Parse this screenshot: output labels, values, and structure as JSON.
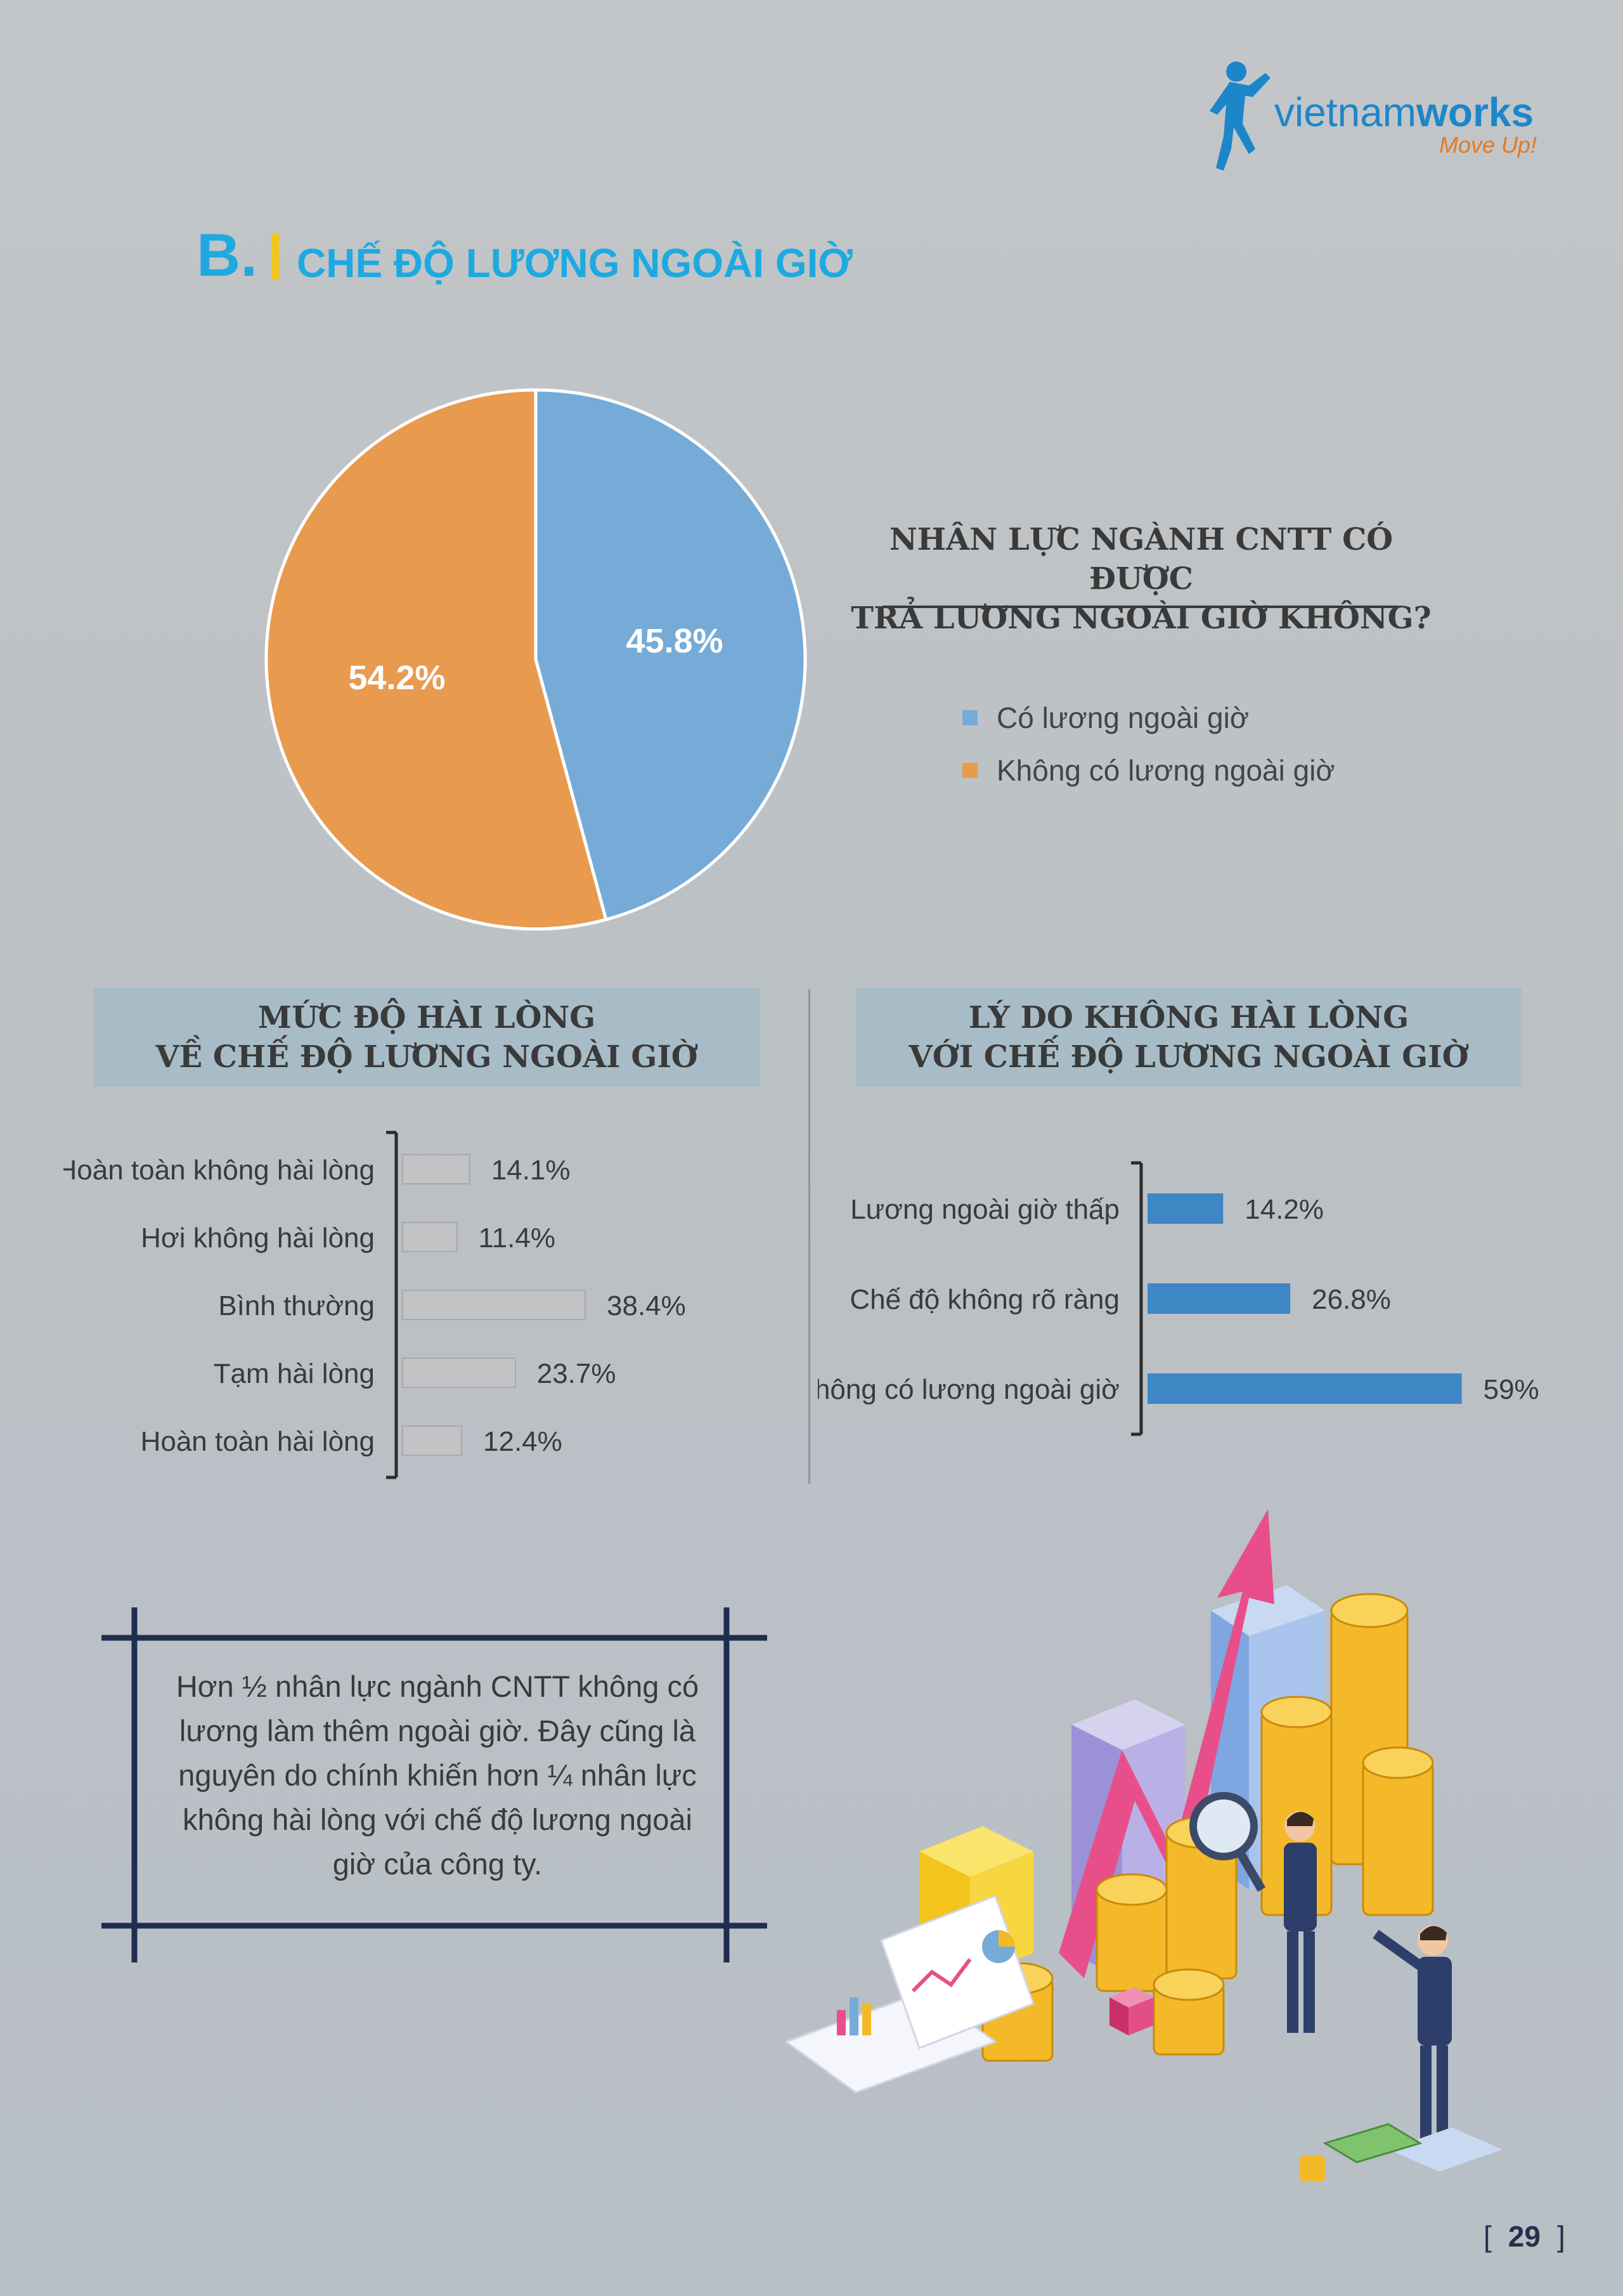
{
  "brand": {
    "name_light": "vietnam",
    "name_bold": "works",
    "tagline": "Move Up!"
  },
  "section": {
    "letter": "B.",
    "title": "CHẾ ĐỘ LƯƠNG NGOÀI GIỜ"
  },
  "pie": {
    "question_line1": "NHÂN LỰC NGÀNH CNTT CÓ ĐƯỢC",
    "question_line2": "TRẢ LƯƠNG NGOÀI GIỜ KHÔNG?",
    "colors": [
      "#77abd7",
      "#e89a4f"
    ]
  },
  "satisfaction": {
    "title_line1": "MỨC ĐỘ HÀI LÒNG",
    "title_line2": "VỀ CHẾ ĐỘ LƯƠNG NGOÀI GIỜ",
    "bar_color": "#c3c3c5"
  },
  "reasons": {
    "title_line1": "LÝ DO KHÔNG HÀI LÒNG",
    "title_line2": "VỚI CHẾ ĐỘ LƯƠNG NGOÀI GIỜ",
    "bar_color": "#3e86c4"
  },
  "note": {
    "lines": [
      "Hơn ½ nhân lực ngành CNTT không có",
      "lương làm thêm ngoài giờ. Đây cũng là",
      "nguyên do chính khiến hơn ¼ nhân lực",
      "không hài lòng với chế độ lương ngoài",
      "giờ của công ty."
    ]
  },
  "page_number": "29",
  "chart_data": [
    {
      "type": "pie",
      "title": "NHÂN LỰC NGÀNH CNTT CÓ ĐƯỢC TRẢ LƯƠNG NGOÀI GIỜ KHÔNG?",
      "labels": [
        "Có lương ngoài giờ",
        "Không có lương ngoài giờ"
      ],
      "values": [
        45.8,
        54.2
      ],
      "value_labels": [
        "45.8%",
        "54.2%"
      ],
      "colors": [
        "#77abd7",
        "#e89a4f"
      ],
      "legend": "right"
    },
    {
      "type": "bar",
      "orientation": "horizontal",
      "title": "MỨC ĐỘ HÀI LÒNG VỀ CHẾ ĐỘ LƯƠNG NGOÀI GIỜ",
      "categories": [
        "Hoàn toàn không hài lòng",
        "Hơi không hài lòng",
        "Bình thường",
        "Tạm hài lòng",
        "Hoàn toàn hài lòng"
      ],
      "values": [
        14.1,
        11.4,
        38.4,
        23.7,
        12.4
      ],
      "value_labels": [
        "14.1%",
        "11.4%",
        "38.4%",
        "23.7%",
        "12.4%"
      ],
      "color": "#c3c3c5"
    },
    {
      "type": "bar",
      "orientation": "horizontal",
      "title": "LÝ DO KHÔNG HÀI LÒNG VỚI CHẾ ĐỘ LƯƠNG NGOÀI GIỜ",
      "categories": [
        "Lương ngoài giờ thấp",
        "Chế độ không rõ ràng",
        "Không có lương ngoài giờ"
      ],
      "values": [
        14.2,
        26.8,
        59
      ],
      "value_labels": [
        "14.2%",
        "26.8%",
        "59%"
      ],
      "color": "#3e86c4"
    }
  ]
}
